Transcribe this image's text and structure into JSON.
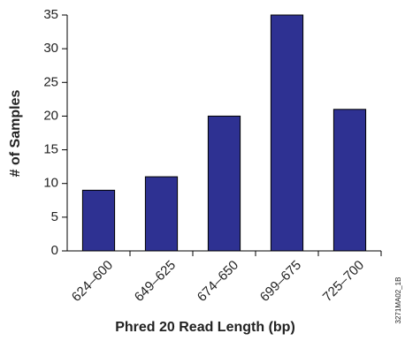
{
  "chart_data": {
    "type": "bar",
    "x_label": "Phred 20 Read Length (bp)",
    "y_label": "# of Samples",
    "figure_id": "3271MA02_1B",
    "categories": [
      "624–600",
      "649–625",
      "674–650",
      "699–675",
      "725–700"
    ],
    "values": [
      9,
      11,
      20,
      35,
      21
    ],
    "color": "#2e3192",
    "ylim": [
      0,
      35
    ],
    "yticks": [
      0,
      5,
      10,
      15,
      20,
      25,
      30,
      35
    ],
    "grid": false
  }
}
